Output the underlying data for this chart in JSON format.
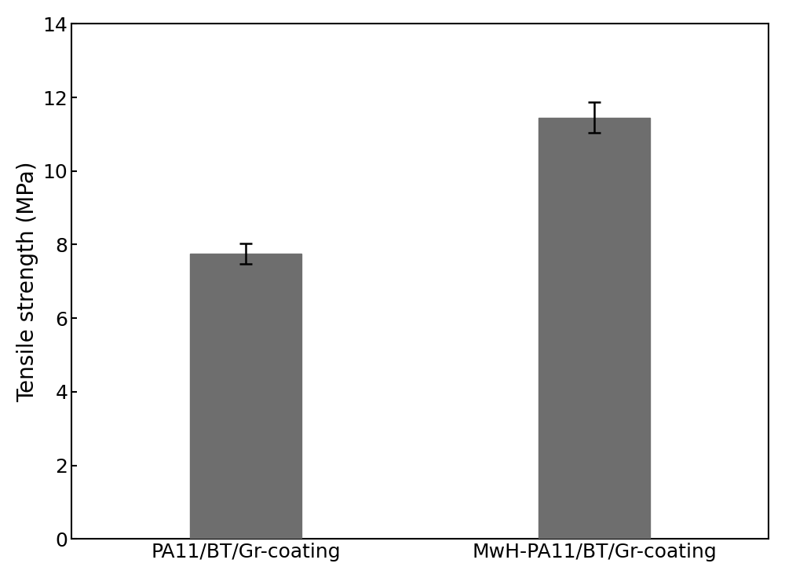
{
  "categories": [
    "PA11/BT/Gr-coating",
    "MwH-PA11/BT/Gr-coating"
  ],
  "values": [
    7.75,
    11.45
  ],
  "errors": [
    0.28,
    0.42
  ],
  "bar_color": "#6e6e6e",
  "bar_width": 0.32,
  "bar_positions": [
    1,
    2
  ],
  "ylabel": "Tensile strength (MPa)",
  "ylim": [
    0,
    14
  ],
  "yticks": [
    0,
    2,
    4,
    6,
    8,
    10,
    12,
    14
  ],
  "xlim": [
    0.5,
    2.5
  ],
  "background_color": "#ffffff",
  "ylabel_fontsize": 20,
  "tick_fontsize": 18,
  "xtick_fontsize": 18,
  "error_capsize": 6,
  "error_linewidth": 1.8,
  "error_color": "#000000",
  "spine_linewidth": 1.5
}
